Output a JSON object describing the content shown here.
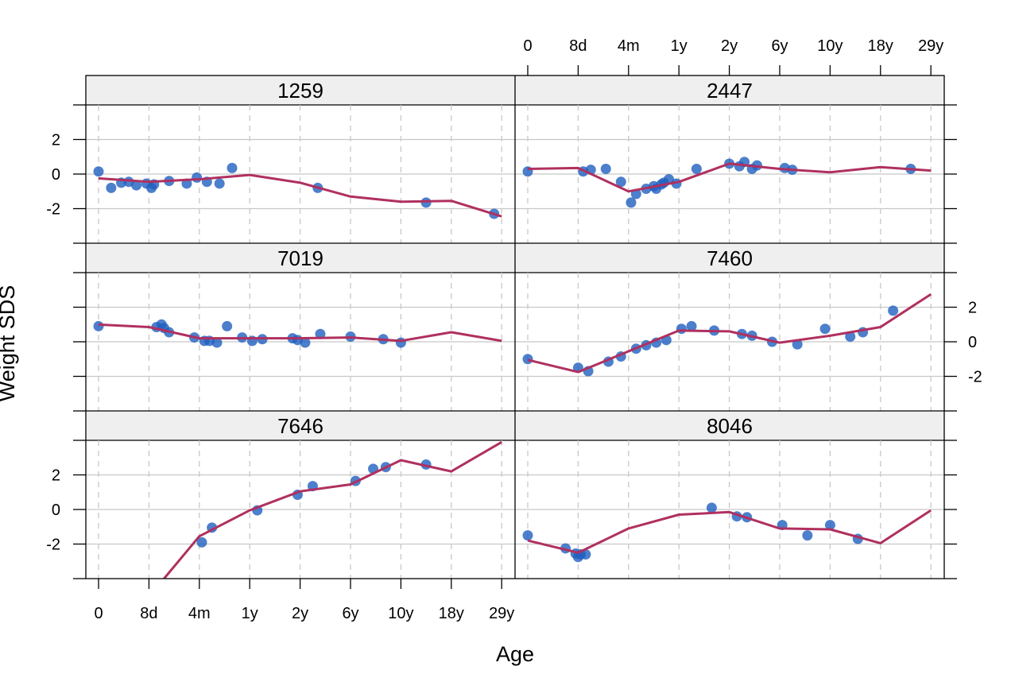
{
  "chart_data": {
    "type": "scatter",
    "xlabel": "Age",
    "ylabel": "Weight SDS",
    "x_tick_labels": [
      "0",
      "8d",
      "4m",
      "1y",
      "2y",
      "6y",
      "10y",
      "18y",
      "29y"
    ],
    "y_ticks": [
      -2,
      0,
      2
    ],
    "y_tick_labels": [
      "-2",
      "0",
      "2"
    ],
    "ylim": [
      -4,
      4
    ],
    "grid": true,
    "colors": {
      "points": "#1f5fbf",
      "lines": "#b0305f",
      "strip": "#efefef",
      "grid": "#c8c8c8"
    },
    "panels": [
      {
        "label": "1259",
        "points": [
          [
            0,
            0.15
          ],
          [
            0.25,
            -0.8
          ],
          [
            0.45,
            -0.5
          ],
          [
            0.6,
            -0.45
          ],
          [
            0.75,
            -0.65
          ],
          [
            0.95,
            -0.55
          ],
          [
            1.05,
            -0.8
          ],
          [
            1.1,
            -0.6
          ],
          [
            1.4,
            -0.4
          ],
          [
            1.75,
            -0.55
          ],
          [
            1.95,
            -0.2
          ],
          [
            2.15,
            -0.45
          ],
          [
            2.4,
            -0.55
          ],
          [
            2.65,
            0.35
          ],
          [
            4.35,
            -0.8
          ],
          [
            6.5,
            -1.65
          ],
          [
            7.85,
            -2.3
          ]
        ],
        "line": [
          [
            0,
            -0.25
          ],
          [
            1,
            -0.45
          ],
          [
            2,
            -0.3
          ],
          [
            3,
            -0.05
          ],
          [
            4,
            -0.5
          ],
          [
            5,
            -1.3
          ],
          [
            6,
            -1.6
          ],
          [
            7,
            -1.55
          ],
          [
            8,
            -2.45
          ]
        ]
      },
      {
        "label": "2447",
        "points": [
          [
            0,
            0.15
          ],
          [
            1.1,
            0.15
          ],
          [
            1.25,
            0.25
          ],
          [
            1.55,
            0.3
          ],
          [
            1.85,
            -0.45
          ],
          [
            2.05,
            -1.65
          ],
          [
            2.15,
            -1.15
          ],
          [
            2.35,
            -0.85
          ],
          [
            2.5,
            -0.7
          ],
          [
            2.55,
            -0.85
          ],
          [
            2.65,
            -0.6
          ],
          [
            2.7,
            -0.5
          ],
          [
            2.8,
            -0.3
          ],
          [
            2.95,
            -0.55
          ],
          [
            3.35,
            0.3
          ],
          [
            4,
            0.6
          ],
          [
            4.2,
            0.45
          ],
          [
            4.3,
            0.7
          ],
          [
            4.45,
            0.3
          ],
          [
            4.55,
            0.5
          ],
          [
            5.1,
            0.35
          ],
          [
            5.25,
            0.25
          ],
          [
            7.6,
            0.3
          ]
        ],
        "line": [
          [
            0,
            0.3
          ],
          [
            1,
            0.35
          ],
          [
            2,
            -1.0
          ],
          [
            3,
            -0.45
          ],
          [
            4,
            0.6
          ],
          [
            5,
            0.3
          ],
          [
            6,
            0.1
          ],
          [
            7,
            0.4
          ],
          [
            8,
            0.2
          ]
        ]
      },
      {
        "label": "7019",
        "points": [
          [
            0,
            0.9
          ],
          [
            1.15,
            0.85
          ],
          [
            1.25,
            1.0
          ],
          [
            1.3,
            0.8
          ],
          [
            1.4,
            0.55
          ],
          [
            1.9,
            0.25
          ],
          [
            2.1,
            0.05
          ],
          [
            2.2,
            0.05
          ],
          [
            2.35,
            -0.05
          ],
          [
            2.55,
            0.9
          ],
          [
            2.85,
            0.25
          ],
          [
            3.05,
            0.05
          ],
          [
            3.25,
            0.15
          ],
          [
            3.85,
            0.2
          ],
          [
            3.95,
            0.1
          ],
          [
            4.1,
            -0.05
          ],
          [
            4.4,
            0.45
          ],
          [
            5.0,
            0.3
          ],
          [
            5.65,
            0.15
          ],
          [
            6.0,
            -0.05
          ]
        ],
        "line": [
          [
            0,
            1.0
          ],
          [
            1,
            0.85
          ],
          [
            2,
            0.2
          ],
          [
            3,
            0.2
          ],
          [
            4,
            0.2
          ],
          [
            5,
            0.25
          ],
          [
            6,
            0.05
          ],
          [
            7,
            0.55
          ],
          [
            8,
            0.05
          ]
        ]
      },
      {
        "label": "7460",
        "points": [
          [
            0,
            -1.0
          ],
          [
            1,
            -1.5
          ],
          [
            1.2,
            -1.7
          ],
          [
            1.6,
            -1.15
          ],
          [
            1.85,
            -0.85
          ],
          [
            2.15,
            -0.4
          ],
          [
            2.35,
            -0.2
          ],
          [
            2.55,
            -0.05
          ],
          [
            2.75,
            0.1
          ],
          [
            3.05,
            0.75
          ],
          [
            3.25,
            0.9
          ],
          [
            3.7,
            0.65
          ],
          [
            4.25,
            0.45
          ],
          [
            4.45,
            0.35
          ],
          [
            4.85,
            0
          ],
          [
            5.35,
            -0.15
          ],
          [
            5.9,
            0.75
          ],
          [
            6.4,
            0.3
          ],
          [
            6.65,
            0.55
          ],
          [
            7.25,
            1.8
          ]
        ],
        "line": [
          [
            0,
            -1.05
          ],
          [
            1,
            -1.75
          ],
          [
            2,
            -0.55
          ],
          [
            3,
            0.65
          ],
          [
            4,
            0.6
          ],
          [
            5,
            -0.05
          ],
          [
            6,
            0.35
          ],
          [
            7,
            0.85
          ],
          [
            8,
            2.75
          ]
        ]
      },
      {
        "label": "7646",
        "points": [
          [
            2.05,
            -1.9
          ],
          [
            2.25,
            -1.05
          ],
          [
            3.15,
            -0.05
          ],
          [
            3.95,
            0.85
          ],
          [
            4.25,
            1.35
          ],
          [
            5.1,
            1.65
          ],
          [
            5.45,
            2.35
          ],
          [
            5.7,
            2.45
          ],
          [
            6.5,
            2.6
          ]
        ],
        "line": [
          [
            1.3,
            -4.0
          ],
          [
            2,
            -1.55
          ],
          [
            3,
            -0.05
          ],
          [
            4,
            1.05
          ],
          [
            5,
            1.45
          ],
          [
            6,
            2.85
          ],
          [
            7,
            2.2
          ],
          [
            8,
            3.9
          ]
        ]
      },
      {
        "label": "8046",
        "points": [
          [
            0,
            -1.5
          ],
          [
            0.75,
            -2.25
          ],
          [
            0.95,
            -2.55
          ],
          [
            1.0,
            -2.75
          ],
          [
            1.05,
            -2.6
          ],
          [
            1.15,
            -2.6
          ],
          [
            3.65,
            0.1
          ],
          [
            4.15,
            -0.4
          ],
          [
            4.35,
            -0.45
          ],
          [
            5.05,
            -0.9
          ],
          [
            5.55,
            -1.5
          ],
          [
            6.0,
            -0.9
          ],
          [
            6.55,
            -1.7
          ]
        ],
        "line": [
          [
            0,
            -1.8
          ],
          [
            1,
            -2.5
          ],
          [
            2,
            -1.1
          ],
          [
            3,
            -0.3
          ],
          [
            4,
            -0.15
          ],
          [
            5,
            -1.1
          ],
          [
            6,
            -1.15
          ],
          [
            7,
            -1.95
          ],
          [
            8,
            -0.05
          ]
        ]
      }
    ]
  }
}
